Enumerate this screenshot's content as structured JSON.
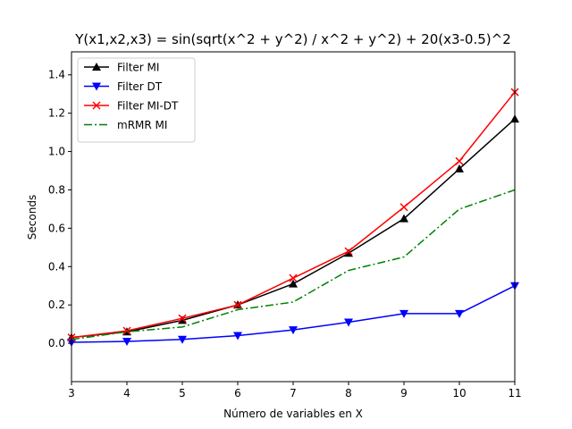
{
  "chart_data": {
    "type": "line",
    "title": "Y(x1,x2,x3) = sin(sqrt(x^2 + y^2) / x^2 + y^2) + 20(x3-0.5)^2",
    "xlabel": "Número de variables en X",
    "ylabel": "Seconds",
    "xlim": [
      3,
      11
    ],
    "ylim": [
      -0.2,
      1.52
    ],
    "x": [
      3,
      4,
      5,
      6,
      7,
      8,
      9,
      10,
      11
    ],
    "xticks": [
      "3",
      "4",
      "5",
      "6",
      "7",
      "8",
      "9",
      "10",
      "11"
    ],
    "yticks": [
      "0.0",
      "0.2",
      "0.4",
      "0.6",
      "0.8",
      "1.0",
      "1.2",
      "1.4"
    ],
    "grid": false,
    "legend_position": "top-left",
    "series": [
      {
        "name": "Filter MI",
        "color": "#000000",
        "marker": "triangle-up",
        "linestyle": "solid",
        "values": [
          0.03,
          0.06,
          0.12,
          0.2,
          0.31,
          0.47,
          0.65,
          0.91,
          1.17
        ]
      },
      {
        "name": "Filter DT",
        "color": "#0000ff",
        "marker": "triangle-down",
        "linestyle": "solid",
        "values": [
          0.005,
          0.01,
          0.02,
          0.04,
          0.07,
          0.11,
          0.155,
          0.155,
          0.3
        ]
      },
      {
        "name": "Filter MI-DT",
        "color": "#ff0000",
        "marker": "x",
        "linestyle": "solid",
        "values": [
          0.03,
          0.065,
          0.13,
          0.2,
          0.34,
          0.48,
          0.71,
          0.95,
          1.31
        ]
      },
      {
        "name": "mRMR MI",
        "color": "#008000",
        "marker": "none",
        "linestyle": "dashdot",
        "values": [
          0.02,
          0.06,
          0.085,
          0.175,
          0.215,
          0.38,
          0.45,
          0.7,
          0.8
        ]
      }
    ]
  }
}
